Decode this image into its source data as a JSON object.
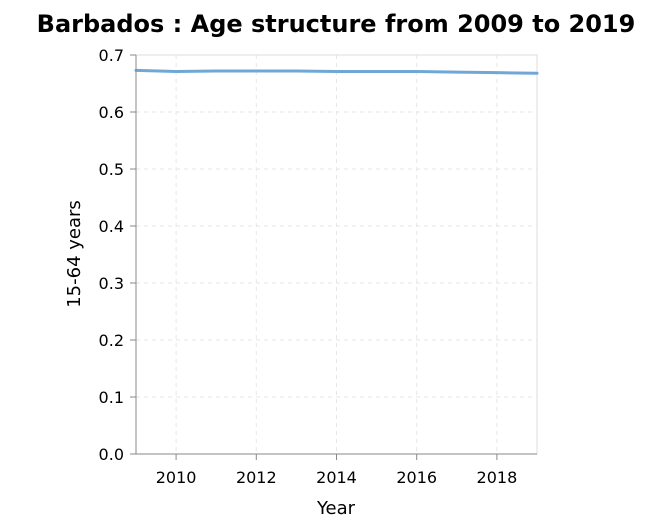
{
  "chart_data": {
    "type": "line",
    "title": "Barbados : Age structure from 2009 to 2019",
    "xlabel": "Year",
    "ylabel": "15-64 years",
    "xlim": [
      2009,
      2019
    ],
    "ylim": [
      0,
      0.7
    ],
    "x_ticks": [
      "2010",
      "2012",
      "2014",
      "2016",
      "2018"
    ],
    "y_ticks": [
      "0.0",
      "0.1",
      "0.2",
      "0.3",
      "0.4",
      "0.5",
      "0.6",
      "0.7"
    ],
    "grid": true,
    "legend": "none",
    "series": [
      {
        "color": "#6fa8d6",
        "x": [
          2009,
          2010,
          2011,
          2012,
          2013,
          2014,
          2015,
          2016,
          2017,
          2018,
          2019
        ],
        "values": [
          0.673,
          0.671,
          0.672,
          0.672,
          0.672,
          0.671,
          0.671,
          0.671,
          0.67,
          0.669,
          0.668
        ]
      }
    ]
  }
}
